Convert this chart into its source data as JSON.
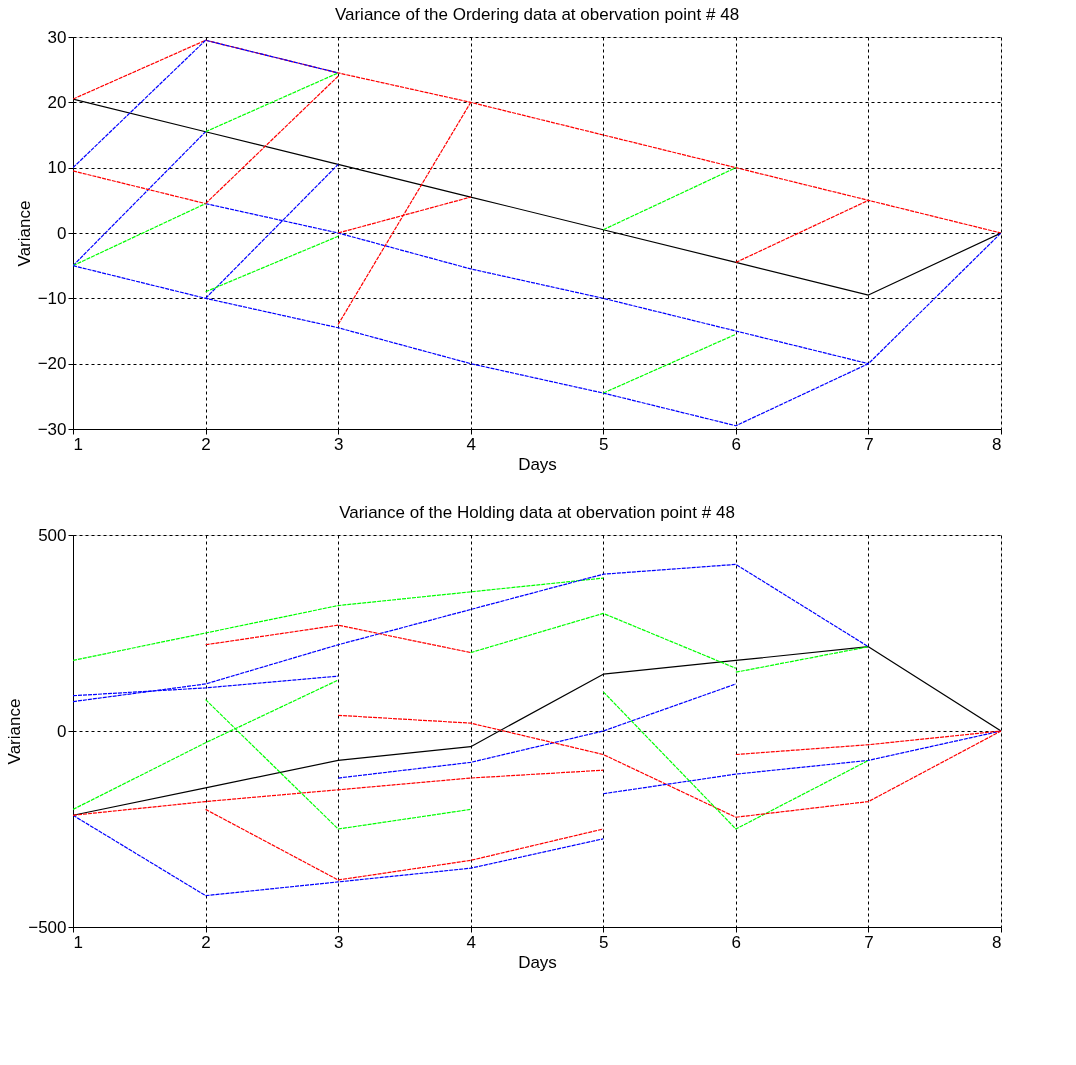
{
  "chart_data": [
    {
      "type": "line",
      "title": "Variance of the Ordering data at obervation point # 48",
      "xlabel": "Days",
      "ylabel": "Variance",
      "xlim": [
        1,
        8
      ],
      "xticks": [
        1,
        2,
        3,
        4,
        5,
        6,
        7,
        8
      ],
      "ylim": [
        -30,
        30
      ],
      "yticks": [
        -30,
        -20,
        -10,
        0,
        10,
        20,
        30
      ],
      "grid": true,
      "series": [
        {
          "color": "#000000",
          "line_style": "solid",
          "x": [
            1,
            2,
            3,
            4,
            5,
            6,
            7,
            8
          ],
          "values": [
            20.5,
            15.5,
            10.5,
            5.5,
            0.5,
            -4.5,
            -9.5,
            0
          ]
        },
        {
          "color": "#ff0000",
          "line_style": "dashed",
          "x": [
            1,
            2,
            3,
            4,
            5,
            6,
            7,
            8
          ],
          "values": [
            20.5,
            29.5,
            24.5,
            20,
            15,
            10,
            5,
            0
          ]
        },
        {
          "color": "#0000ff",
          "line_style": "dashed",
          "x": [
            1,
            2,
            3
          ],
          "values": [
            10,
            29.5,
            24.5
          ]
        },
        {
          "color": "#0000ff",
          "line_style": "dashed",
          "x": [
            1,
            2
          ],
          "values": [
            -5,
            15.5
          ]
        },
        {
          "color": "#00ff00",
          "line_style": "dashed",
          "x": [
            2,
            3
          ],
          "values": [
            15.5,
            24.5
          ]
        },
        {
          "color": "#ff0000",
          "line_style": "dashed",
          "x": [
            1,
            2
          ],
          "values": [
            9.5,
            4.5
          ]
        },
        {
          "color": "#0000ff",
          "line_style": "dashed",
          "x": [
            2,
            3,
            4,
            5,
            6,
            7
          ],
          "values": [
            4.5,
            0,
            -5.5,
            -10,
            -15,
            -20
          ]
        },
        {
          "color": "#00ff00",
          "line_style": "dashed",
          "x": [
            1,
            2
          ],
          "values": [
            -5,
            4.5
          ]
        },
        {
          "color": "#0000ff",
          "line_style": "dashed",
          "x": [
            1,
            2,
            3,
            4,
            5,
            6,
            7,
            8
          ],
          "values": [
            -5,
            -10,
            -14.5,
            -20,
            -24.5,
            -29.5,
            -20,
            0
          ]
        },
        {
          "color": "#0000ff",
          "line_style": "dashed",
          "x": [
            2,
            3
          ],
          "values": [
            -10,
            10.5
          ]
        },
        {
          "color": "#00ff00",
          "line_style": "dashed",
          "x": [
            2,
            3
          ],
          "values": [
            -9,
            -0.5
          ]
        },
        {
          "color": "#ff0000",
          "line_style": "dashed",
          "x": [
            2,
            3
          ],
          "values": [
            4.5,
            24
          ]
        },
        {
          "color": "#ff0000",
          "line_style": "dashed",
          "x": [
            3,
            4
          ],
          "values": [
            -14,
            20
          ]
        },
        {
          "color": "#ff0000",
          "line_style": "dashed",
          "x": [
            3,
            4
          ],
          "values": [
            0,
            5.5
          ]
        },
        {
          "color": "#00ff00",
          "line_style": "dashed",
          "x": [
            5,
            6
          ],
          "values": [
            0.5,
            10
          ]
        },
        {
          "color": "#ff0000",
          "line_style": "dashed",
          "x": [
            6,
            7
          ],
          "values": [
            -4.5,
            5
          ]
        },
        {
          "color": "#00ff00",
          "line_style": "dashed",
          "x": [
            5,
            6
          ],
          "values": [
            -24.5,
            -15.5
          ]
        }
      ]
    },
    {
      "type": "line",
      "title": "Variance of the Holding data at obervation point # 48",
      "xlabel": "Days",
      "ylabel": "Variance",
      "xlim": [
        1,
        8
      ],
      "xticks": [
        1,
        2,
        3,
        4,
        5,
        6,
        7,
        8
      ],
      "ylim": [
        -500,
        500
      ],
      "yticks": [
        -500,
        0,
        500
      ],
      "grid": true,
      "series": [
        {
          "color": "#000000",
          "line_style": "solid",
          "x": [
            1,
            2,
            3,
            4,
            5,
            6,
            7,
            8
          ],
          "values": [
            -215,
            -145,
            -75,
            -40,
            145,
            180,
            215,
            0
          ]
        },
        {
          "color": "#00ff00",
          "line_style": "dashed",
          "x": [
            1,
            2,
            3,
            4,
            5
          ],
          "values": [
            180,
            250,
            320,
            355,
            390
          ]
        },
        {
          "color": "#0000ff",
          "line_style": "dashed",
          "x": [
            1,
            2,
            3,
            4,
            5,
            6,
            7
          ],
          "values": [
            75,
            120,
            220,
            310,
            400,
            425,
            215
          ]
        },
        {
          "color": "#0000ff",
          "line_style": "dashed",
          "x": [
            1,
            2,
            3,
            4,
            5
          ],
          "values": [
            -215,
            -420,
            -385,
            -350,
            -275
          ]
        },
        {
          "color": "#ff0000",
          "line_style": "dashed",
          "x": [
            1,
            2,
            3,
            4,
            5
          ],
          "values": [
            -215,
            -180,
            -150,
            -120,
            -100
          ]
        },
        {
          "color": "#00ff00",
          "line_style": "dashed",
          "x": [
            1,
            2,
            3
          ],
          "values": [
            -200,
            -30,
            130
          ]
        },
        {
          "color": "#0000ff",
          "line_style": "dashed",
          "x": [
            1,
            2,
            3
          ],
          "values": [
            90,
            110,
            140
          ]
        },
        {
          "color": "#ff0000",
          "line_style": "dashed",
          "x": [
            2,
            3,
            4
          ],
          "values": [
            220,
            270,
            200
          ]
        },
        {
          "color": "#00ff00",
          "line_style": "dashed",
          "x": [
            2,
            3,
            4
          ],
          "values": [
            80,
            -250,
            -200
          ]
        },
        {
          "color": "#ff0000",
          "line_style": "dashed",
          "x": [
            2,
            3,
            4,
            5
          ],
          "values": [
            -200,
            -380,
            -330,
            -250
          ]
        },
        {
          "color": "#0000ff",
          "line_style": "dashed",
          "x": [
            3,
            4,
            5,
            6
          ],
          "values": [
            -120,
            -80,
            0,
            120
          ]
        },
        {
          "color": "#ff0000",
          "line_style": "dashed",
          "x": [
            3,
            4,
            5,
            6
          ],
          "values": [
            40,
            20,
            -60,
            -220
          ]
        },
        {
          "color": "#00ff00",
          "line_style": "dashed",
          "x": [
            4,
            5,
            6
          ],
          "values": [
            200,
            300,
            160
          ]
        },
        {
          "color": "#0000ff",
          "line_style": "dashed",
          "x": [
            5,
            6,
            7,
            8
          ],
          "values": [
            -160,
            -110,
            -75,
            0
          ]
        },
        {
          "color": "#00ff00",
          "line_style": "dashed",
          "x": [
            5,
            6,
            7
          ],
          "values": [
            100,
            -250,
            -75
          ]
        },
        {
          "color": "#00ff00",
          "line_style": "dashed",
          "x": [
            6,
            7
          ],
          "values": [
            150,
            215
          ]
        },
        {
          "color": "#ff0000",
          "line_style": "dashed",
          "x": [
            6,
            7,
            8
          ],
          "values": [
            -220,
            -180,
            0
          ]
        },
        {
          "color": "#ff0000",
          "line_style": "dashed",
          "x": [
            6,
            7,
            8
          ],
          "values": [
            -60,
            -35,
            0
          ]
        }
      ]
    }
  ]
}
